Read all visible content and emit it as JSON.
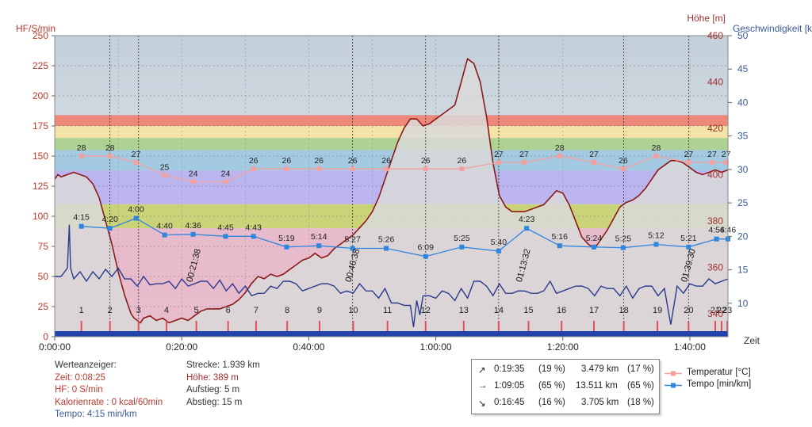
{
  "chart_data": {
    "type": "line",
    "axes": {
      "left": {
        "title": "HF/S/min",
        "min": 0,
        "max": 250,
        "ticks": [
          0,
          25,
          50,
          75,
          100,
          125,
          150,
          175,
          200,
          225,
          250
        ],
        "color": "#c0392b"
      },
      "right1": {
        "title": "Höhe [m]",
        "min": 330,
        "max": 460,
        "ticks": [
          340,
          360,
          380,
          400,
          420,
          440,
          460
        ],
        "color": "#a03030"
      },
      "right2": {
        "title": "Geschwindigkeit [k",
        "min": 5,
        "max": 50,
        "ticks": [
          10,
          15,
          20,
          25,
          30,
          35,
          40,
          45,
          50
        ],
        "color": "#3a5a99"
      },
      "x": {
        "title": "Zeit",
        "min_minutes": 0,
        "max_minutes": 106,
        "ticks": [
          {
            "m": 0,
            "label": "0:00:00"
          },
          {
            "m": 20,
            "label": "0:20:00"
          },
          {
            "m": 40,
            "label": "0:40:00"
          },
          {
            "m": 60,
            "label": "1:00:00"
          },
          {
            "m": 80,
            "label": "1:20:00"
          },
          {
            "m": 100,
            "label": "1:40:00"
          }
        ]
      }
    },
    "zones": [
      {
        "from": 175,
        "to": 184,
        "color": "#f08070"
      },
      {
        "from": 165,
        "to": 175,
        "color": "#f7e3a0"
      },
      {
        "from": 155,
        "to": 165,
        "color": "#a8d08a"
      },
      {
        "from": 138,
        "to": 155,
        "color": "#9fc8e0"
      },
      {
        "from": 110,
        "to": 138,
        "color": "#b8b0f0"
      },
      {
        "from": 90,
        "to": 110,
        "color": "#c8d06a"
      },
      {
        "from": 0,
        "to": 90,
        "color": "#e8b6c8"
      }
    ],
    "altitude": {
      "name": "Höhe",
      "color": "#8b1a1a",
      "fill": "#d9d9d9",
      "x": [
        0,
        0.5,
        1,
        2,
        3,
        4,
        5,
        6,
        7,
        8,
        9,
        10,
        11,
        11.5,
        12,
        12.5,
        13,
        13.5,
        14,
        15,
        16,
        17,
        18,
        19,
        20,
        21,
        22,
        23,
        24,
        25,
        26,
        27,
        28,
        29,
        30,
        31,
        32,
        33,
        34,
        35,
        36,
        37,
        38,
        39,
        40,
        41,
        42,
        43,
        44,
        45,
        46,
        47,
        48,
        49,
        50,
        51,
        52,
        53,
        54,
        55,
        56,
        57,
        58,
        59,
        60,
        61,
        62,
        63,
        64,
        65,
        66,
        67,
        68,
        69,
        70,
        71,
        72,
        73,
        74,
        75,
        76,
        77,
        78,
        79,
        80,
        81,
        82,
        83,
        84,
        85,
        86,
        87,
        88,
        89,
        90,
        91,
        92,
        93,
        94,
        95,
        96,
        97,
        98,
        99,
        100,
        101,
        102,
        103,
        104,
        105,
        106
      ],
      "y": [
        398,
        400,
        399,
        400,
        401,
        400,
        399,
        396,
        390,
        380,
        370,
        358,
        348,
        344,
        340,
        338,
        337,
        336,
        338,
        339,
        337,
        338,
        336,
        337,
        338,
        337,
        339,
        341,
        342,
        342,
        342,
        343,
        344,
        346,
        349,
        353,
        356,
        355,
        357,
        356,
        357,
        359,
        361,
        363,
        364,
        366,
        364,
        365,
        368,
        370,
        372,
        374,
        377,
        380,
        384,
        390,
        398,
        406,
        414,
        420,
        424,
        424,
        421,
        422,
        424,
        426,
        428,
        430,
        440,
        450,
        448,
        440,
        425,
        405,
        391,
        386,
        384,
        384,
        384,
        385,
        386,
        387,
        390,
        393,
        392,
        387,
        380,
        373,
        370,
        368,
        372,
        376,
        381,
        386,
        388,
        389,
        391,
        394,
        398,
        402,
        404,
        406,
        406,
        405,
        403,
        401,
        400,
        401,
        402,
        401,
        402
      ]
    },
    "heart_rate": {
      "name": "HF",
      "color": "#2a3a8c",
      "x": [
        0,
        1,
        2,
        2.3,
        2.5,
        3,
        4,
        5,
        6,
        7,
        8,
        9,
        10,
        11,
        12,
        13,
        14,
        15,
        16,
        17,
        18,
        19,
        20,
        21,
        22,
        23,
        24,
        25,
        26,
        27,
        28,
        29,
        30,
        31,
        32,
        33,
        34,
        35,
        36,
        37,
        38,
        39,
        40,
        41,
        42,
        43,
        44,
        45,
        46,
        47,
        48,
        49,
        50,
        51,
        52,
        53,
        54,
        55,
        56,
        56.5,
        57,
        57.5,
        58,
        59,
        60,
        61,
        62,
        63,
        64,
        65,
        66,
        67,
        68,
        69,
        70,
        71,
        72,
        73,
        74,
        75,
        76,
        77,
        78,
        79,
        80,
        81,
        82,
        83,
        84,
        85,
        86,
        87,
        88,
        89,
        90,
        91,
        92,
        93,
        94,
        95,
        96,
        97,
        98,
        99,
        100,
        101,
        102,
        103,
        104,
        105,
        106
      ],
      "y": [
        48,
        52,
        55,
        95,
        55,
        50,
        52,
        48,
        52,
        50,
        54,
        52,
        55,
        50,
        46,
        44,
        48,
        45,
        42,
        46,
        44,
        42,
        46,
        44,
        42,
        48,
        44,
        42,
        45,
        40,
        42,
        38,
        40,
        36,
        34,
        38,
        40,
        42,
        44,
        48,
        42,
        40,
        38,
        44,
        42,
        46,
        40,
        38,
        36,
        38,
        42,
        40,
        36,
        34,
        38,
        30,
        26,
        28,
        24,
        10,
        28,
        20,
        32,
        36,
        30,
        40,
        34,
        32,
        38,
        34,
        44,
        48,
        40,
        36,
        42,
        38,
        34,
        40,
        36,
        38,
        34,
        40,
        44,
        38,
        36,
        42,
        40,
        44,
        38,
        36,
        40,
        42,
        38,
        36,
        40,
        34,
        38,
        44,
        40,
        36,
        38,
        12,
        40,
        38,
        42,
        44,
        40,
        50,
        42,
        48,
        46
      ]
    },
    "temperature": {
      "name": "Temperatur [°C]",
      "color": "#f4a0a0",
      "x": [
        4.2,
        8.7,
        12.8,
        17.3,
        21.8,
        26.9,
        31.3,
        36.5,
        41.6,
        46.9,
        52.2,
        58.4,
        64.1,
        69.9,
        73.9,
        79.5,
        84.9,
        89.5,
        94.7,
        99.8,
        103.5,
        105.7
      ],
      "y": [
        28,
        28,
        27,
        25,
        24,
        24,
        26,
        26,
        26,
        26,
        26,
        26,
        26,
        27,
        27,
        28,
        27,
        26,
        28,
        27,
        27,
        27
      ]
    },
    "tempo": {
      "name": "Tempo [min/km]",
      "color": "#2e86de",
      "x": [
        4.2,
        8.7,
        12.8,
        17.3,
        21.8,
        26.9,
        31.3,
        36.5,
        41.6,
        46.9,
        52.2,
        58.4,
        64.1,
        69.9,
        74.3,
        79.5,
        84.9,
        89.5,
        94.7,
        99.8,
        104.2,
        106
      ],
      "y": [
        21.5,
        21.2,
        22.7,
        20.2,
        20.3,
        20.0,
        20.0,
        18.4,
        18.6,
        18.2,
        18.2,
        17.0,
        18.4,
        17.8,
        21.2,
        18.6,
        18.4,
        18.3,
        18.8,
        18.4,
        19.6,
        19.6
      ],
      "labels": [
        "4:15",
        "4:20",
        "4:00",
        "4:40",
        "4:36",
        "4:45",
        "4:43",
        "5:19",
        "5:14",
        "5:27",
        "5:26",
        "6:09",
        "5:25",
        "5:40",
        "4:23",
        "5:16",
        "5:24",
        "5:25",
        "5:12",
        "5:21",
        "4:56",
        "4:46"
      ]
    },
    "laps": {
      "labels": [
        "1",
        "2",
        "3",
        "4",
        "5",
        "6",
        "7",
        "8",
        "9",
        "10",
        "11",
        "12",
        "13",
        "14",
        "15",
        "16",
        "17",
        "18",
        "19",
        "20",
        "21",
        "22",
        "23"
      ],
      "x": [
        4.2,
        8.7,
        13.2,
        17.6,
        22.3,
        27.3,
        31.7,
        36.6,
        41.7,
        47.0,
        52.4,
        58.4,
        64.4,
        69.9,
        74.6,
        79.8,
        84.9,
        89.6,
        94.9,
        99.8,
        104.0,
        105.0,
        105.9
      ]
    },
    "time_markers": [
      {
        "x": 21.6,
        "label": "00:21:38"
      },
      {
        "x": 46.6,
        "label": "00:46:38"
      },
      {
        "x": 73.5,
        "label": "01:13:32"
      },
      {
        "x": 99.5,
        "label": "01:39:30"
      }
    ],
    "dashed_vlines": [
      8.7,
      13.2,
      46.9,
      58.4,
      69.9,
      89.6,
      99.8
    ]
  },
  "info": {
    "col1": {
      "title": "Werteanzeiger:",
      "time": "Zeit: 0:08:25",
      "hf": "HF: 0 S/min",
      "calories": "Kalorienrate : 0 kcal/60min",
      "tempo": "Tempo: 4:15 min/km"
    },
    "col2": {
      "distance": "Strecke: 1.939 km",
      "altitude": "Höhe: 389 m",
      "ascent": "Aufstieg: 5 m",
      "descent": "Abstieg: 15 m"
    }
  },
  "summary": [
    {
      "icon": "↗",
      "time": "0:19:35",
      "pct1": "(19 %)",
      "km": "3.479 km",
      "pct2": "(17 %)"
    },
    {
      "icon": "→",
      "time": "1:09:05",
      "pct1": "(65 %)",
      "km": "13.511 km",
      "pct2": "(65 %)"
    },
    {
      "icon": "↘",
      "time": "0:16:45",
      "pct1": "(16 %)",
      "km": "3.705 km",
      "pct2": "(18 %)"
    }
  ],
  "legend": [
    {
      "label": "Temperatur [°C]",
      "color": "#f4a0a0"
    },
    {
      "label": "Tempo [min/km]",
      "color": "#2e86de"
    }
  ],
  "colors": {
    "left_axis": "#c0392b",
    "blue_axis": "#3a5a99",
    "lap_marker": "#e0505a",
    "bottom_bar": "#2244aa"
  }
}
